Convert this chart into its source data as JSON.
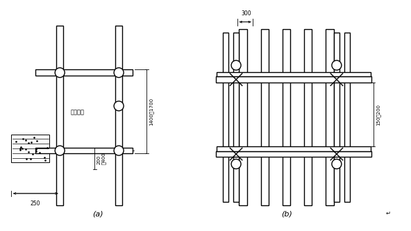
{
  "bg_color": "#ffffff",
  "line_color": "#000000",
  "fig_width": 5.92,
  "fig_height": 3.33,
  "label_a": "(a)",
  "label_b": "(b)",
  "dim_1400_1700": "1400～1700",
  "dim_200_400": "200\n～400",
  "dim_250": "—250—",
  "dim_300": "300",
  "dim_150_200": "150～200",
  "text_floor": "楼板平面"
}
